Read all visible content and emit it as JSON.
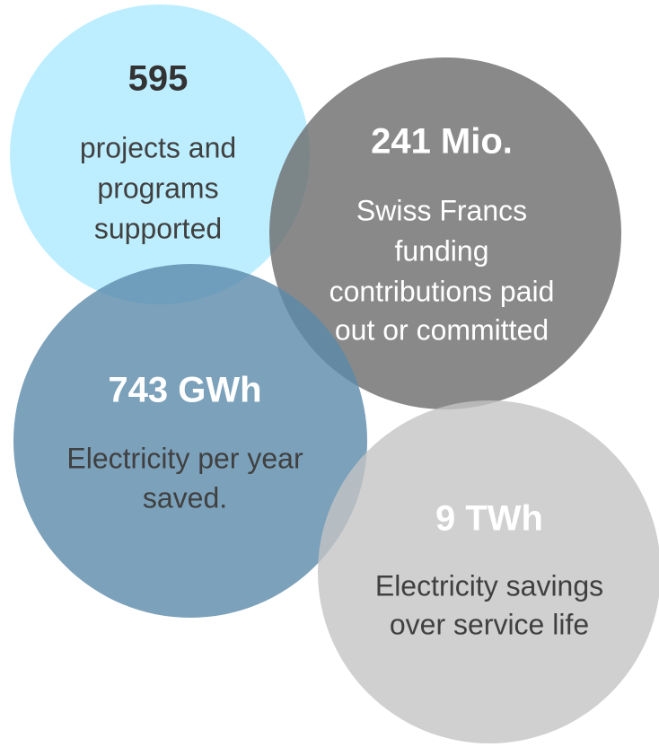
{
  "circles": [
    {
      "headline": "595",
      "lines": [
        "projects and",
        "programs",
        "supported"
      ]
    },
    {
      "headline": "241 Mio.",
      "lines": [
        "Swiss Francs",
        "funding",
        "contributions paid",
        "out or committed"
      ]
    },
    {
      "headline": "743 GWh",
      "lines": [
        "Electricity per year",
        "saved."
      ]
    },
    {
      "headline": "9 TWh",
      "lines": [
        "Electricity savings",
        "over service life"
      ]
    }
  ]
}
